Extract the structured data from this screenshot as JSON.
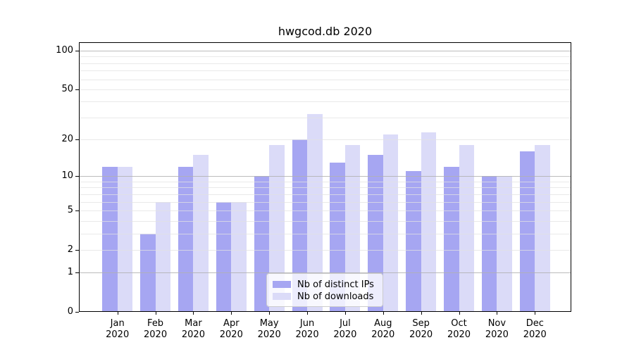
{
  "chart_data": {
    "type": "bar",
    "title": "hwgcod.db 2020",
    "scale": "log1p",
    "ylim": [
      0,
      114
    ],
    "y_tick_labels": [
      "0",
      "1",
      "2",
      "5",
      "10",
      "20",
      "50",
      "100"
    ],
    "y_tick_values": [
      0,
      1,
      2,
      5,
      10,
      20,
      50,
      100
    ],
    "grid_major": [
      1,
      10,
      100
    ],
    "grid_minor": [
      2,
      3,
      4,
      5,
      6,
      7,
      8,
      9,
      20,
      30,
      40,
      50,
      60,
      70,
      80,
      90
    ],
    "categories": [
      {
        "month": "Jan",
        "year": "2020"
      },
      {
        "month": "Feb",
        "year": "2020"
      },
      {
        "month": "Mar",
        "year": "2020"
      },
      {
        "month": "Apr",
        "year": "2020"
      },
      {
        "month": "May",
        "year": "2020"
      },
      {
        "month": "Jun",
        "year": "2020"
      },
      {
        "month": "Jul",
        "year": "2020"
      },
      {
        "month": "Aug",
        "year": "2020"
      },
      {
        "month": "Sep",
        "year": "2020"
      },
      {
        "month": "Oct",
        "year": "2020"
      },
      {
        "month": "Nov",
        "year": "2020"
      },
      {
        "month": "Dec",
        "year": "2020"
      }
    ],
    "series": [
      {
        "name": "Nb of distinct IPs",
        "color": "#a6a6f2",
        "values": [
          12,
          3,
          12,
          6,
          10,
          20,
          13,
          15,
          11,
          12,
          10,
          16
        ]
      },
      {
        "name": "Nb of downloads",
        "color": "#dbdbf8",
        "values": [
          12,
          6,
          15,
          6,
          18,
          32,
          18,
          22,
          23,
          18,
          10,
          18
        ]
      }
    ],
    "legend_position": "lower center"
  }
}
